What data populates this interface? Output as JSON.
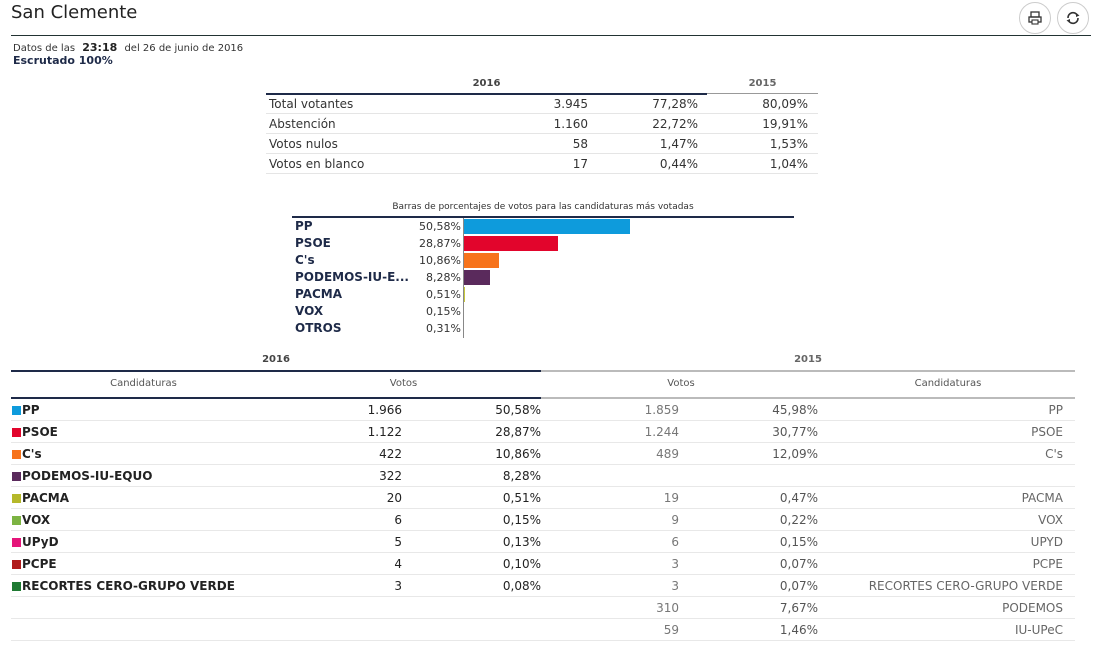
{
  "header": {
    "title": "San Clemente",
    "print_icon": "print-icon",
    "refresh_icon": "refresh-icon"
  },
  "meta": {
    "prefix": "Datos de las",
    "time": "23:18",
    "date": "del 26 de junio de 2016",
    "scrutiny": "Escrutado 100%"
  },
  "summary": {
    "year_2016": "2016",
    "year_2015": "2015",
    "rows": [
      {
        "label": "Total votantes",
        "v16": "3.945",
        "p16": "77,28%",
        "p15": "80,09%"
      },
      {
        "label": "Abstención",
        "v16": "1.160",
        "p16": "22,72%",
        "p15": "19,91%"
      },
      {
        "label": "Votos nulos",
        "v16": "58",
        "p16": "1,47%",
        "p15": "1,53%"
      },
      {
        "label": "Votos en blanco",
        "v16": "17",
        "p16": "0,44%",
        "p15": "1,04%"
      }
    ]
  },
  "chart_data": {
    "type": "bar",
    "title": "Barras de porcentajes de votos para las candidaturas más votadas",
    "categories": [
      "PP",
      "PSOE",
      "C's",
      "PODEMOS-IU-E...",
      "PACMA",
      "VOX",
      "OTROS"
    ],
    "values": [
      50.58,
      28.87,
      10.86,
      8.28,
      0.51,
      0.15,
      0.31
    ],
    "labels": [
      "50,58%",
      "28,87%",
      "10,86%",
      "8,28%",
      "0,51%",
      "0,15%",
      "0,31%"
    ],
    "colors": [
      "#0e9bdc",
      "#e2052c",
      "#f7731b",
      "#5a2a5c",
      "#c8c93c",
      "#7cb342",
      "#888888"
    ],
    "ylim": [
      0,
      100
    ]
  },
  "results": {
    "year_2016": "2016",
    "year_2015": "2015",
    "col_candidaturas": "Candidaturas",
    "col_votos": "Votos",
    "col_votos_15": "Votos",
    "col_candidaturas_15": "Candidaturas",
    "rows": [
      {
        "party": "PP",
        "color": "#0e9bdc",
        "v16": "1.966",
        "p16": "50,58%",
        "v15": "1.859",
        "p15": "45,98%",
        "n15": "PP"
      },
      {
        "party": "PSOE",
        "color": "#e2052c",
        "v16": "1.122",
        "p16": "28,87%",
        "v15": "1.244",
        "p15": "30,77%",
        "n15": "PSOE"
      },
      {
        "party": "C's",
        "color": "#f7731b",
        "v16": "422",
        "p16": "10,86%",
        "v15": "489",
        "p15": "12,09%",
        "n15": "C's"
      },
      {
        "party": "PODEMOS-IU-EQUO",
        "color": "#5a2a5c",
        "v16": "322",
        "p16": "8,28%",
        "v15": "",
        "p15": "",
        "n15": ""
      },
      {
        "party": "PACMA",
        "color": "#b5b82a",
        "v16": "20",
        "p16": "0,51%",
        "v15": "19",
        "p15": "0,47%",
        "n15": "PACMA"
      },
      {
        "party": "VOX",
        "color": "#7cb342",
        "v16": "6",
        "p16": "0,15%",
        "v15": "9",
        "p15": "0,22%",
        "n15": "VOX"
      },
      {
        "party": "UPyD",
        "color": "#e5157a",
        "v16": "5",
        "p16": "0,13%",
        "v15": "6",
        "p15": "0,15%",
        "n15": "UPYD"
      },
      {
        "party": "PCPE",
        "color": "#b01c1c",
        "v16": "4",
        "p16": "0,10%",
        "v15": "3",
        "p15": "0,07%",
        "n15": "PCPE"
      },
      {
        "party": "RECORTES CERO-GRUPO VERDE",
        "color": "#1f7a33",
        "v16": "3",
        "p16": "0,08%",
        "v15": "3",
        "p15": "0,07%",
        "n15": "RECORTES CERO-GRUPO VERDE"
      },
      {
        "party": "",
        "color": "",
        "v16": "",
        "p16": "",
        "v15": "310",
        "p15": "7,67%",
        "n15": "PODEMOS"
      },
      {
        "party": "",
        "color": "",
        "v16": "",
        "p16": "",
        "v15": "59",
        "p15": "1,46%",
        "n15": "IU-UPeC"
      }
    ]
  }
}
